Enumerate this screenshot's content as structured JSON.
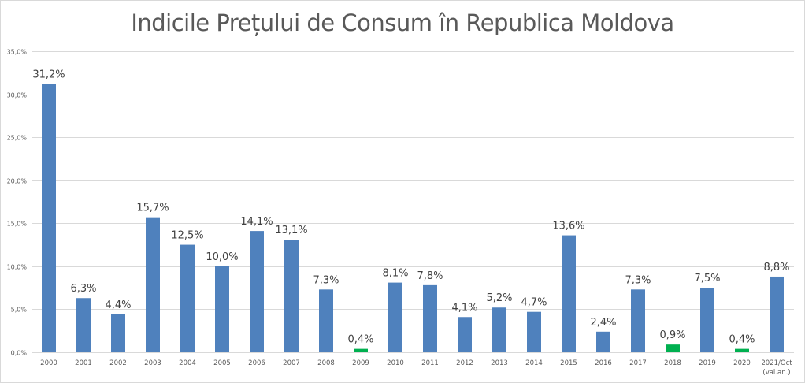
{
  "chart_data": {
    "type": "bar",
    "title": "Indicile Prețului de Consum în Republica Moldova",
    "xlabel": "",
    "ylabel": "",
    "ylim": [
      0,
      35
    ],
    "yticks": [
      "0,0%",
      "5,0%",
      "10,0%",
      "15,0%",
      "20,0%",
      "25,0%",
      "30,0%",
      "35,0%"
    ],
    "ytick_values": [
      0,
      5,
      10,
      15,
      20,
      25,
      30,
      35
    ],
    "grid": true,
    "legend": "none",
    "categories": [
      "2000",
      "2001",
      "2002",
      "2003",
      "2004",
      "2005",
      "2006",
      "2007",
      "2008",
      "2009",
      "2010",
      "2011",
      "2012",
      "2013",
      "2014",
      "2015",
      "2016",
      "2017",
      "2018",
      "2019",
      "2020",
      "2021/Oct\n(val.an.)"
    ],
    "values": [
      31.2,
      6.3,
      4.4,
      15.7,
      12.5,
      10.0,
      14.1,
      13.1,
      7.3,
      0.4,
      8.1,
      7.8,
      4.1,
      5.2,
      4.7,
      13.6,
      2.4,
      7.3,
      0.9,
      7.5,
      0.4,
      8.8
    ],
    "data_labels": [
      "31,2%",
      "6,3%",
      "4,4%",
      "15,7%",
      "12,5%",
      "10,0%",
      "14,1%",
      "13,1%",
      "7,3%",
      "0,4%",
      "8,1%",
      "7,8%",
      "4,1%",
      "5,2%",
      "4,7%",
      "13,6%",
      "2,4%",
      "7,3%",
      "0,9%",
      "7,5%",
      "0,4%",
      "8,8%"
    ],
    "highlight_categories": [
      "2009",
      "2018",
      "2020"
    ],
    "colors": {
      "default": "#4f81bd",
      "highlight": "#00b050",
      "grid": "#d9d9d9"
    }
  }
}
